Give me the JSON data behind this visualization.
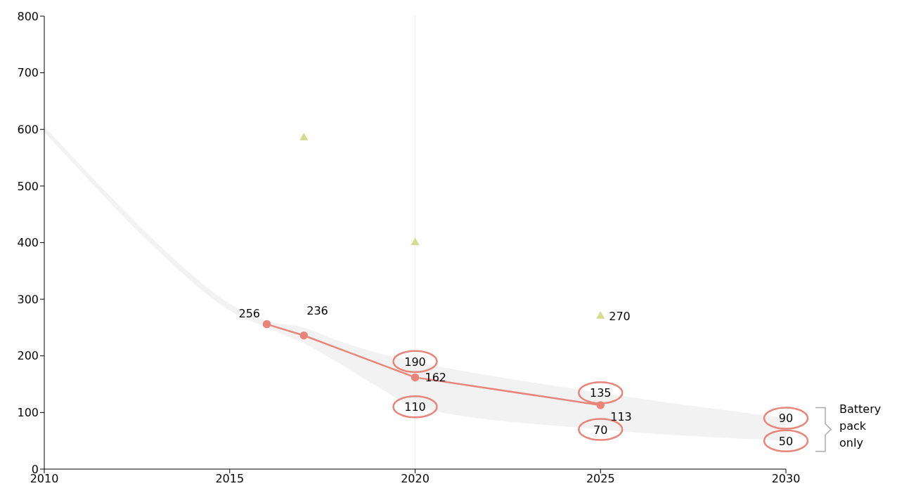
{
  "chart_data": {
    "type": "line",
    "xlim": [
      2010,
      2030
    ],
    "ylim": [
      0,
      800
    ],
    "xticks": [
      2010,
      2015,
      2020,
      2025,
      2030
    ],
    "yticks": [
      0,
      100,
      200,
      300,
      400,
      500,
      600,
      700,
      800
    ],
    "grid": false,
    "legend": false,
    "data_labels": true,
    "marker": "circle",
    "series": [
      {
        "type": "area",
        "color": "#f2f2f2",
        "x": [
          2010,
          2011,
          2012,
          2013,
          2014,
          2015,
          2016,
          2017,
          2018,
          2019,
          2020,
          2025,
          2030
        ],
        "values": [
          null,
          null,
          null,
          null,
          null,
          null,
          null,
          null,
          null,
          null,
          null,
          null,
          null
        ],
        "lower": [
          595,
          525,
          455,
          390,
          330,
          280,
          250,
          222,
          185,
          145,
          110,
          70,
          50
        ],
        "upper": [
          605,
          535,
          467,
          402,
          342,
          292,
          262,
          250,
          225,
          205,
          190,
          135,
          90
        ]
      },
      {
        "color": "#e8857a",
        "x": [
          2016,
          2017,
          2020,
          2025
        ],
        "values": [
          256,
          236,
          162,
          113
        ]
      },
      {
        "type": "scatter",
        "marker": "triangle",
        "color": "#d4dc8c",
        "x": [
          2017,
          2020,
          2025
        ],
        "values": [
          585,
          400,
          270
        ],
        "value_labels": [
          null,
          null,
          "270"
        ]
      }
    ],
    "ref_lines": [
      {
        "axis": "x",
        "value": 2020,
        "color": "#f0f0f0"
      }
    ],
    "annotations": [
      {
        "text": "190",
        "x": 2020,
        "y": 190
      },
      {
        "text": "110",
        "x": 2020,
        "y": 110
      },
      {
        "text": "135",
        "x": 2025,
        "y": 135
      },
      {
        "text": "70",
        "x": 2025,
        "y": 70
      },
      {
        "text": "90",
        "x": 2030,
        "y": 90
      },
      {
        "text": "50",
        "x": 2030,
        "y": 50
      },
      "Battery pack only"
    ]
  }
}
